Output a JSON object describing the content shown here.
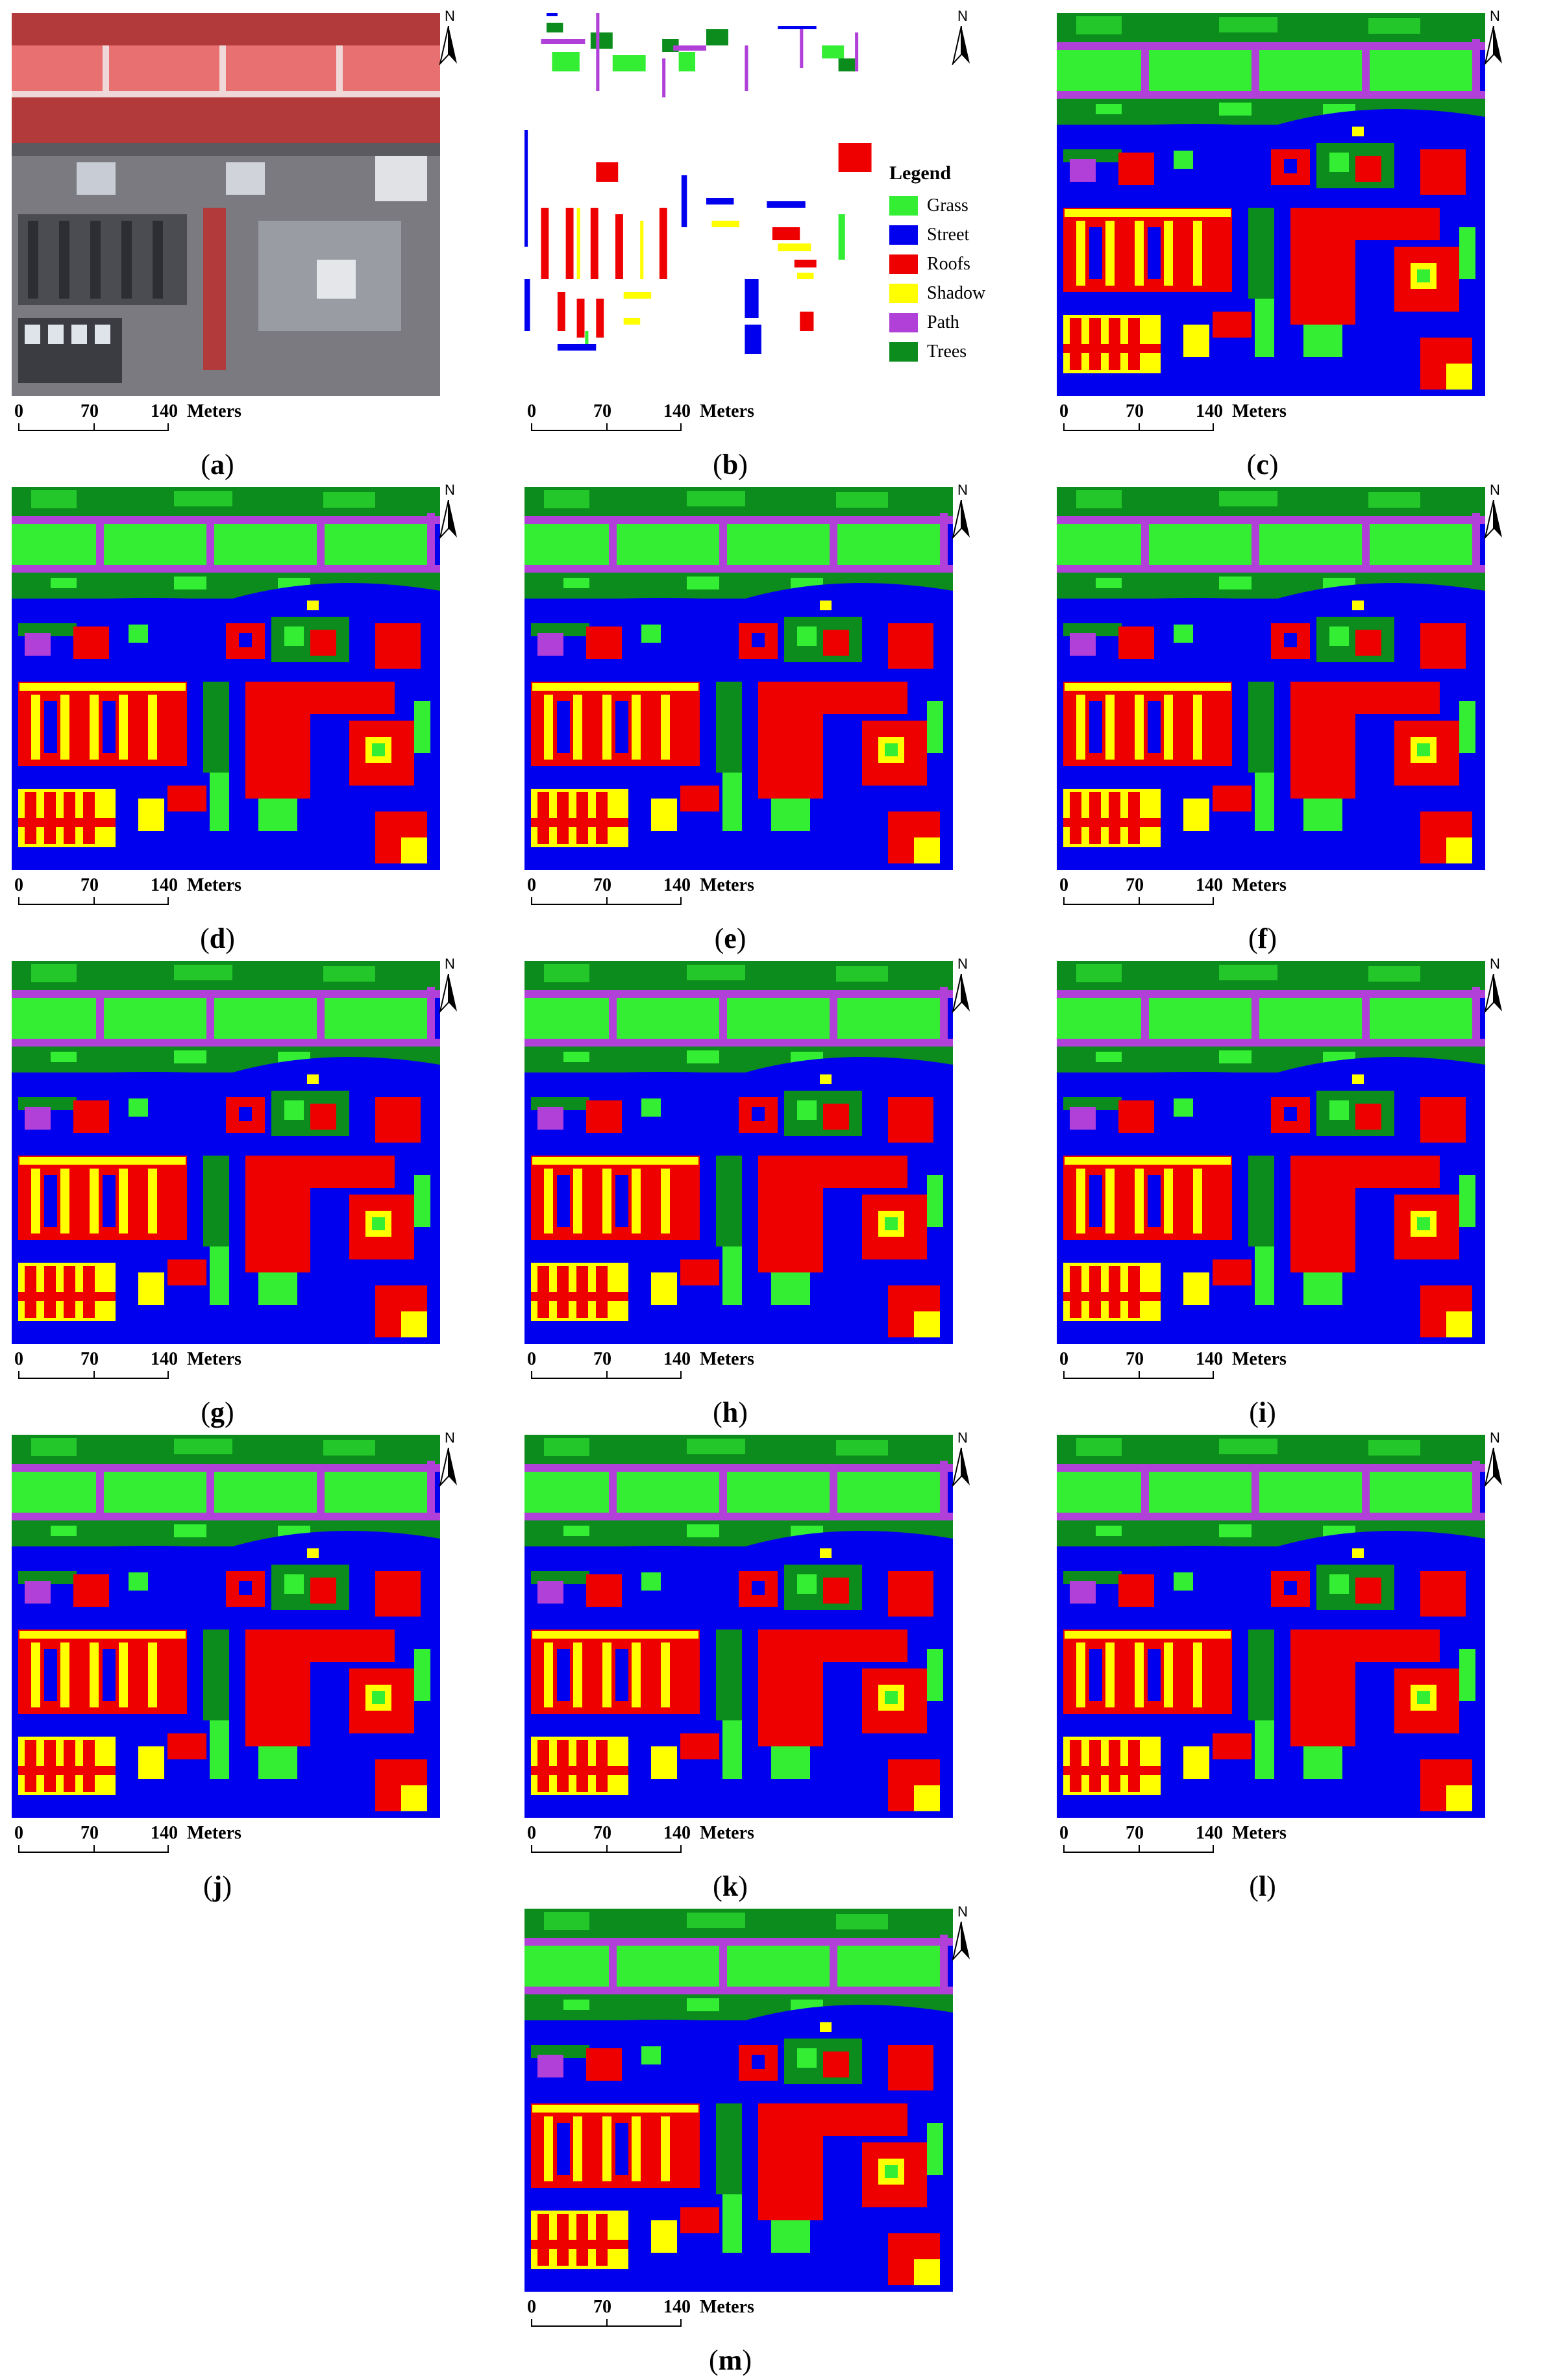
{
  "figure": {
    "scale_labels": {
      "zero": "0",
      "mid": "70",
      "end": "140",
      "unit": "Meters"
    },
    "north_label": "N"
  },
  "legend": {
    "title": "Legend",
    "items": [
      {
        "label": "Grass",
        "color": "#33ee33"
      },
      {
        "label": "Street",
        "color": "#0000ee"
      },
      {
        "label": "Roofs",
        "color": "#ee0000"
      },
      {
        "label": "Shadow",
        "color": "#ffff00"
      },
      {
        "label": "Path",
        "color": "#b040d8"
      },
      {
        "label": "Trees",
        "color": "#0c8c1c"
      }
    ]
  },
  "panels": [
    {
      "id": "a",
      "caption_open": "(",
      "caption_letter": "a",
      "caption_close": ")",
      "kind": "image"
    },
    {
      "id": "b",
      "caption_open": "(",
      "caption_letter": "b",
      "caption_close": ")",
      "kind": "groundtruth"
    },
    {
      "id": "c",
      "caption_open": "(",
      "caption_letter": "c",
      "caption_close": ")",
      "kind": "classmap"
    },
    {
      "id": "d",
      "caption_open": "(",
      "caption_letter": "d",
      "caption_close": ")",
      "kind": "classmap"
    },
    {
      "id": "e",
      "caption_open": "(",
      "caption_letter": "e",
      "caption_close": ")",
      "kind": "classmap"
    },
    {
      "id": "f",
      "caption_open": "(",
      "caption_letter": "f",
      "caption_close": ")",
      "kind": "classmap"
    },
    {
      "id": "g",
      "caption_open": "(",
      "caption_letter": "g",
      "caption_close": ")",
      "kind": "classmap"
    },
    {
      "id": "h",
      "caption_open": "(",
      "caption_letter": "h",
      "caption_close": ")",
      "kind": "classmap"
    },
    {
      "id": "i",
      "caption_open": "(",
      "caption_letter": "i",
      "caption_close": ")",
      "kind": "classmap"
    },
    {
      "id": "j",
      "caption_open": "(",
      "caption_letter": "j",
      "caption_close": ")",
      "kind": "classmap"
    },
    {
      "id": "k",
      "caption_open": "(",
      "caption_letter": "k",
      "caption_close": ")",
      "kind": "classmap"
    },
    {
      "id": "l",
      "caption_open": "(",
      "caption_letter": "l",
      "caption_close": ")",
      "kind": "classmap"
    },
    {
      "id": "m",
      "caption_open": "(",
      "caption_letter": "m",
      "caption_close": ")",
      "kind": "classmap"
    }
  ]
}
